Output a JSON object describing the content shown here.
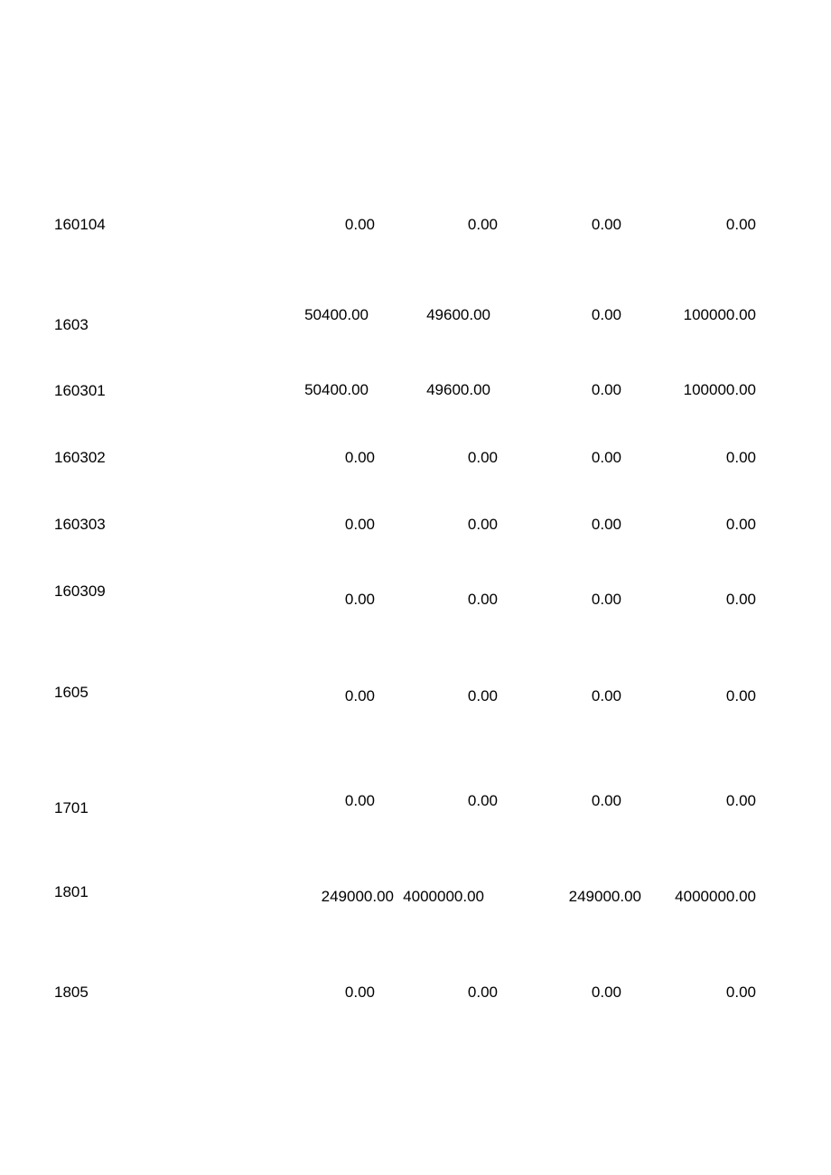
{
  "rows": [
    {
      "code": "160104",
      "values": [
        "0.00",
        "0.00",
        "0.00",
        "0.00"
      ]
    },
    {
      "code": "1603",
      "values": [
        "50400.00",
        "49600.00",
        "0.00",
        "100000.00"
      ]
    },
    {
      "code": "160301",
      "values": [
        "50400.00",
        "49600.00",
        "0.00",
        "100000.00"
      ]
    },
    {
      "code": "160302",
      "values": [
        "0.00",
        "0.00",
        "0.00",
        "0.00"
      ]
    },
    {
      "code": "160303",
      "values": [
        "0.00",
        "0.00",
        "0.00",
        "0.00"
      ]
    },
    {
      "code": "160309",
      "values": [
        "0.00",
        "0.00",
        "0.00",
        "0.00"
      ]
    },
    {
      "code": "1605",
      "values": [
        "0.00",
        "0.00",
        "0.00",
        "0.00"
      ]
    },
    {
      "code": "1701",
      "values": [
        "0.00",
        "0.00",
        "0.00",
        "0.00"
      ]
    },
    {
      "code": "1801",
      "values": [
        "249000.00",
        "4000000.00",
        "249000.00",
        "4000000.00"
      ]
    },
    {
      "code": "1805",
      "values": [
        "0.00",
        "0.00",
        "0.00",
        "0.00"
      ]
    }
  ]
}
